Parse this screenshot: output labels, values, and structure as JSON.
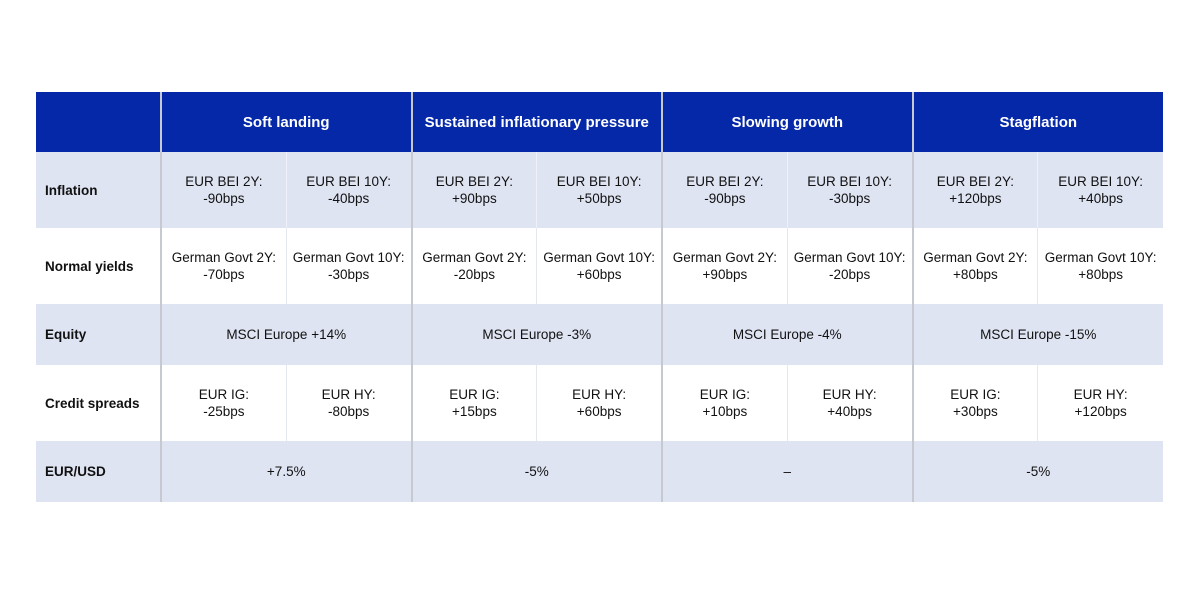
{
  "scenarios": [
    "Soft landing",
    "Sustained inflationary pressure",
    "Slowing growth",
    "Stagflation"
  ],
  "rows": {
    "inflation": {
      "label": "Inflation",
      "cells": [
        [
          "EUR BEI 2Y:",
          "-90bps"
        ],
        [
          "EUR BEI 10Y:",
          "-40bps"
        ],
        [
          "EUR BEI 2Y:",
          "+90bps"
        ],
        [
          "EUR BEI 10Y:",
          "+50bps"
        ],
        [
          "EUR BEI 2Y:",
          "-90bps"
        ],
        [
          "EUR BEI 10Y:",
          "-30bps"
        ],
        [
          "EUR BEI 2Y:",
          "+120bps"
        ],
        [
          "EUR BEI 10Y:",
          "+40bps"
        ]
      ]
    },
    "normal_yields": {
      "label": "Normal yields",
      "cells": [
        [
          "German Govt 2Y:",
          "-70bps"
        ],
        [
          "German Govt 10Y:",
          "-30bps"
        ],
        [
          "German Govt 2Y:",
          "-20bps"
        ],
        [
          "German Govt 10Y:",
          "+60bps"
        ],
        [
          "German Govt 2Y:",
          "+90bps"
        ],
        [
          "German Govt 10Y:",
          "-20bps"
        ],
        [
          "German Govt 2Y:",
          "+80bps"
        ],
        [
          "German Govt 10Y:",
          "+80bps"
        ]
      ]
    },
    "equity": {
      "label": "Equity",
      "cells": [
        "MSCI Europe +14%",
        "MSCI Europe -3%",
        "MSCI Europe -4%",
        "MSCI Europe -15%"
      ]
    },
    "credit_spreads": {
      "label": "Credit spreads",
      "cells": [
        [
          "EUR IG:",
          "-25bps"
        ],
        [
          "EUR HY:",
          "-80bps"
        ],
        [
          "EUR IG:",
          "+15bps"
        ],
        [
          "EUR HY:",
          "+60bps"
        ],
        [
          "EUR IG:",
          "+10bps"
        ],
        [
          "EUR HY:",
          "+40bps"
        ],
        [
          "EUR IG:",
          "+30bps"
        ],
        [
          "EUR HY:",
          "+120bps"
        ]
      ]
    },
    "eurusd": {
      "label": "EUR/USD",
      "cells": [
        "+7.5%",
        "-5%",
        "–",
        "-5%"
      ]
    }
  },
  "colors": {
    "header_bg": "#0528a8",
    "shaded_row_bg": "#dfe4f3"
  }
}
